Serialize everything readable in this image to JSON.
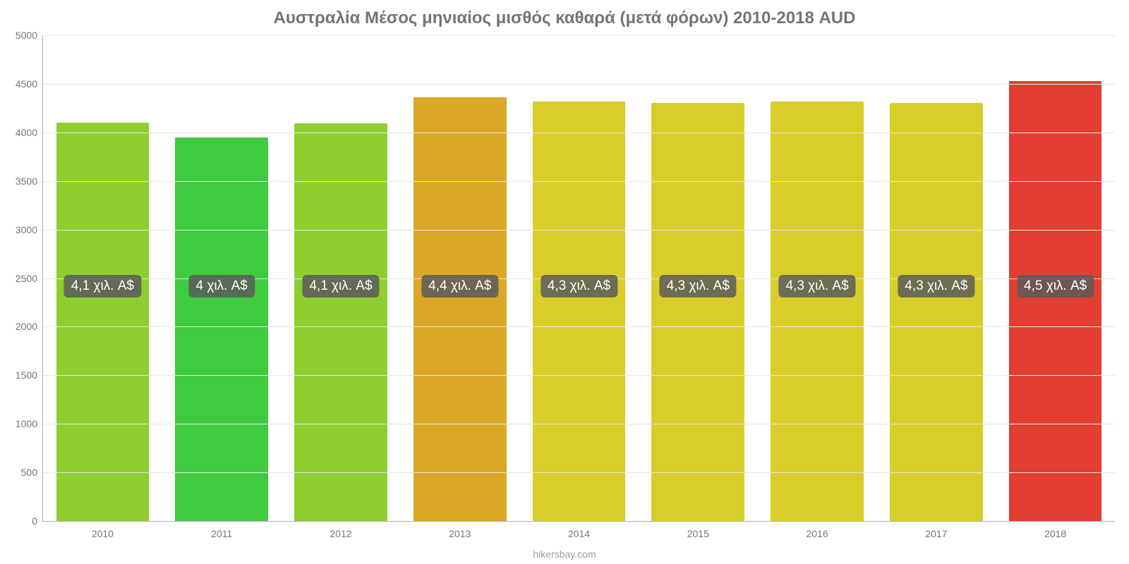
{
  "chart": {
    "type": "bar",
    "title": "Αυστραλία Μέσος μηνιαίος μισθός καθαρά (μετά φόρων) 2010-2018 AUD",
    "title_fontsize": 24,
    "title_color": "#757575",
    "background_color": "#ffffff",
    "grid_color": "#e6e6e6",
    "axis_color": "#b0b0b0",
    "tick_color": "#757575",
    "tick_fontsize": 14,
    "ylim": [
      0,
      5000
    ],
    "ytick_step": 500,
    "yticks": [
      "0",
      "500",
      "1000",
      "1500",
      "2000",
      "2500",
      "3000",
      "3500",
      "4000",
      "4500",
      "5000"
    ],
    "categories": [
      "2010",
      "2011",
      "2012",
      "2013",
      "2014",
      "2015",
      "2016",
      "2017",
      "2018"
    ],
    "values": [
      4100,
      3950,
      4090,
      4360,
      4320,
      4300,
      4320,
      4300,
      4530
    ],
    "value_labels": [
      "4,1 χιλ. A$",
      "4 χιλ. A$",
      "4,1 χιλ. A$",
      "4,4 χιλ. A$",
      "4,3 χιλ. A$",
      "4,3 χιλ. A$",
      "4,3 χιλ. A$",
      "4,3 χιλ. A$",
      "4,5 χιλ. A$"
    ],
    "bar_colors": [
      "#8fce2f",
      "#3fcb3f",
      "#8fce2f",
      "#dba826",
      "#d9cd2a",
      "#d9cd2a",
      "#d9cd2a",
      "#d9cd2a",
      "#e23e31"
    ],
    "bar_width": 0.78,
    "label_y_value": 2300,
    "label_bg": "rgba(90,90,90,0.85)",
    "label_color": "#ffffff",
    "label_fontsize": 19,
    "attribution": "hikersbay.com",
    "attribution_color": "#9e9e9e",
    "attribution_fontsize": 14
  }
}
